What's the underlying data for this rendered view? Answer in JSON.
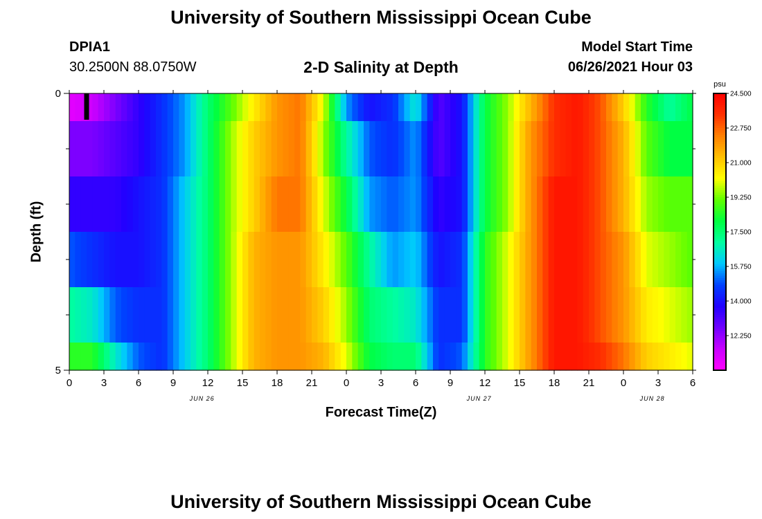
{
  "page": {
    "title_top": "University of Southern Mississippi Ocean Cube",
    "title_bottom": "University of Southern Mississippi Ocean Cube",
    "station_id": "DPIA1",
    "station_coords": "30.2500N  88.0750W",
    "plot_title": "2-D Salinity at Depth",
    "start_label": "Model Start Time",
    "start_value": "06/26/2021 Hour 03"
  },
  "chart_data": {
    "type": "heatmap",
    "title": "2-D Salinity at Depth",
    "xlabel": "Forecast Time(Z)",
    "ylabel": "Depth (ft)",
    "x_hours": [
      0,
      3,
      6,
      9,
      12,
      15,
      18,
      21,
      24,
      27,
      30,
      33,
      36,
      39,
      42,
      45,
      48,
      51,
      54
    ],
    "x_tick_labels": [
      "0",
      "3",
      "6",
      "9",
      "12",
      "15",
      "18",
      "21",
      "0",
      "3",
      "6",
      "9",
      "12",
      "15",
      "18",
      "21",
      "0",
      "3",
      "6"
    ],
    "date_labels": [
      {
        "hour": 11.5,
        "label": "JUN 26"
      },
      {
        "hour": 35.5,
        "label": "JUN 27"
      },
      {
        "hour": 50.5,
        "label": "JUN 28"
      }
    ],
    "xlim": [
      0,
      54
    ],
    "ylim": [
      0,
      5
    ],
    "y_major_ticks": [
      0,
      5
    ],
    "y_minor_ticks": [
      1,
      2,
      3,
      4
    ],
    "depth_levels": [
      0.25,
      1,
      2,
      3,
      4,
      4.75
    ],
    "current_time_marker_hour": 1.5,
    "colorbar": {
      "unit": "psu",
      "min": 10.5,
      "max": 24.5,
      "tick_values": [
        24.5,
        22.75,
        21.0,
        19.25,
        17.5,
        15.75,
        14.0,
        12.25
      ],
      "tick_labels": [
        "24.500",
        "22.750",
        "21.000",
        "19.250",
        "17.500",
        "15.750",
        "14.000",
        "12.250"
      ],
      "colors": [
        "#ff00ff",
        "#c800ff",
        "#7000ff",
        "#2000ff",
        "#0040ff",
        "#00c8ff",
        "#00ffa0",
        "#00ff40",
        "#60ff00",
        "#ffff00",
        "#ffc000",
        "#ff8000",
        "#ff3000",
        "#ff0000"
      ]
    },
    "value_hours": [
      0,
      2,
      4,
      6,
      8,
      10,
      12,
      14,
      16,
      18,
      20,
      22,
      24,
      26,
      28,
      30,
      32,
      34,
      36,
      38,
      40,
      42,
      44,
      46,
      48,
      50,
      52,
      54
    ],
    "values": [
      [
        11.0,
        11.5,
        12.5,
        13.5,
        14.5,
        15.5,
        17.5,
        19.0,
        20.5,
        22.0,
        22.5,
        20.0,
        15.5,
        14.0,
        14.5,
        16.5,
        13.0,
        14.0,
        18.0,
        19.5,
        21.5,
        23.5,
        24.0,
        23.0,
        21.0,
        18.5,
        17.0,
        18.0
      ],
      [
        12.5,
        12.5,
        13.0,
        13.5,
        14.5,
        15.5,
        17.5,
        19.5,
        21.0,
        22.0,
        22.5,
        19.5,
        17.0,
        15.0,
        14.5,
        15.5,
        13.0,
        14.0,
        18.0,
        19.5,
        22.0,
        23.5,
        24.0,
        23.0,
        21.5,
        19.0,
        18.0,
        18.0
      ],
      [
        13.5,
        13.5,
        13.5,
        14.0,
        14.5,
        16.0,
        17.5,
        19.5,
        21.0,
        22.5,
        22.5,
        20.0,
        18.0,
        15.5,
        15.0,
        15.5,
        13.5,
        14.0,
        18.0,
        19.5,
        22.0,
        24.0,
        24.0,
        23.0,
        21.5,
        19.5,
        19.0,
        19.0
      ],
      [
        15.0,
        14.5,
        14.0,
        14.0,
        14.5,
        16.0,
        17.5,
        19.5,
        21.5,
        22.0,
        22.0,
        20.5,
        19.0,
        17.0,
        15.5,
        16.0,
        14.0,
        14.5,
        18.5,
        20.0,
        22.0,
        24.0,
        24.0,
        23.0,
        22.0,
        20.0,
        19.5,
        19.0
      ],
      [
        17.0,
        16.5,
        15.0,
        14.5,
        14.5,
        16.0,
        17.5,
        19.5,
        21.5,
        22.0,
        22.0,
        21.0,
        19.5,
        17.5,
        17.0,
        16.5,
        14.5,
        14.5,
        18.5,
        20.0,
        22.0,
        24.0,
        24.0,
        23.0,
        22.0,
        20.5,
        20.0,
        19.5
      ],
      [
        18.5,
        18.5,
        16.5,
        15.0,
        14.5,
        16.0,
        17.5,
        19.5,
        21.5,
        22.0,
        22.0,
        21.5,
        20.0,
        18.0,
        17.5,
        17.5,
        14.5,
        15.0,
        18.5,
        20.0,
        22.0,
        24.0,
        24.0,
        23.5,
        22.5,
        21.0,
        20.5,
        20.0
      ]
    ]
  }
}
